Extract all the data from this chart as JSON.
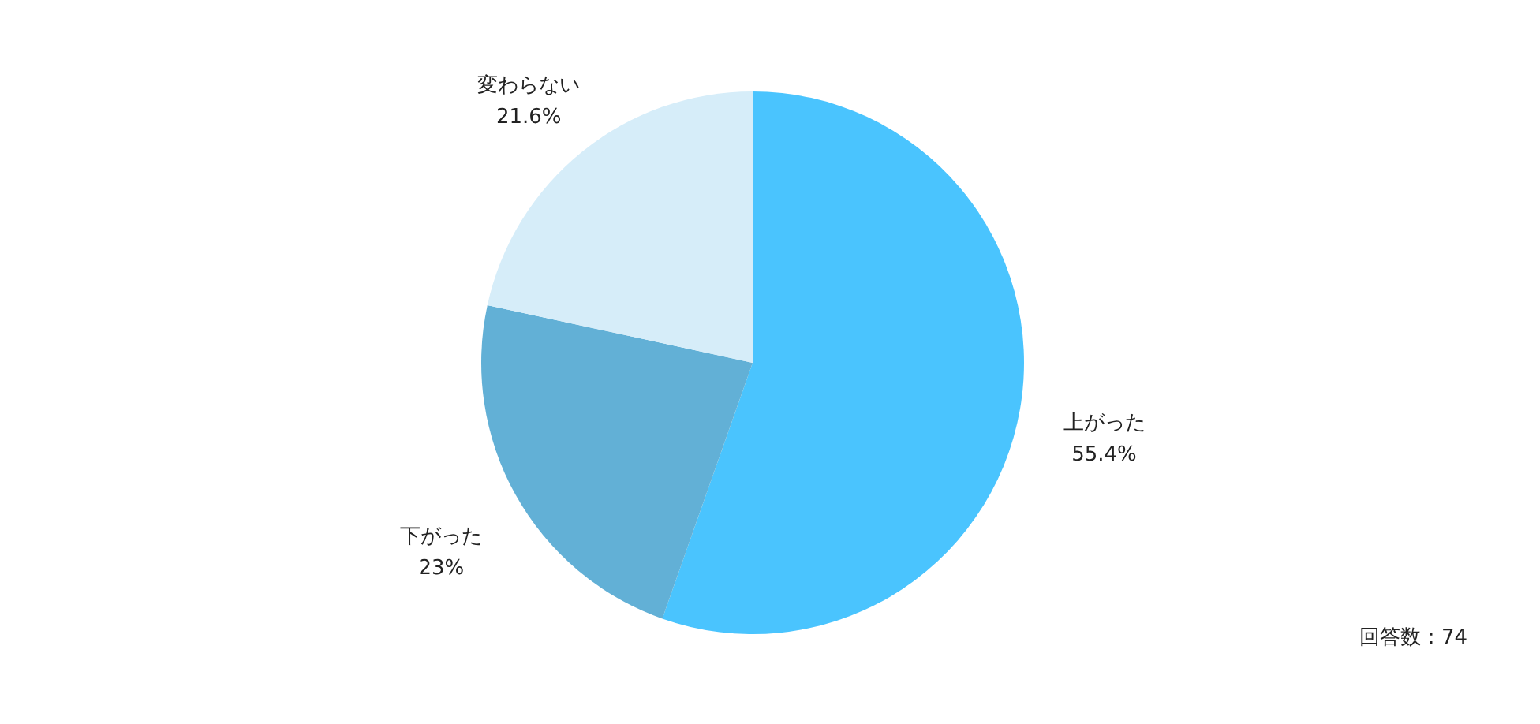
{
  "chart_data": {
    "type": "pie",
    "categories": [
      "上がった",
      "下がった",
      "変わらない"
    ],
    "values": [
      55.4,
      23,
      21.6
    ],
    "colors": [
      "#4ac4fe",
      "#62b0d6",
      "#d6edf9"
    ],
    "value_labels": [
      "55.4%",
      "23%",
      "21.6%"
    ],
    "annotations": [
      "回答数：74"
    ]
  }
}
